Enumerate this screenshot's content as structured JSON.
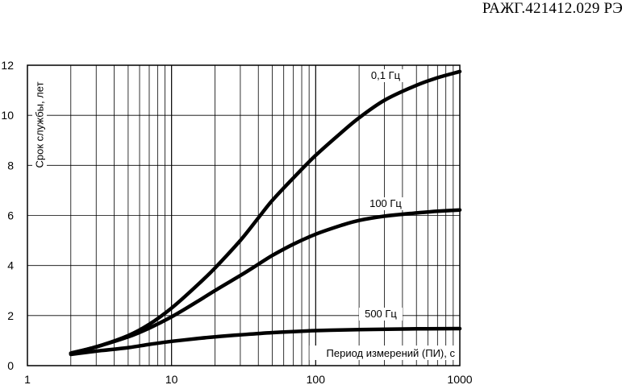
{
  "document": {
    "code": "РАЖГ.421412.029 РЭ"
  },
  "chart_data": {
    "type": "line",
    "title": "",
    "xlabel": "Период измерений (ПИ), с",
    "ylabel": "Срок службы, лет",
    "xscale": "log",
    "xlim": [
      1,
      1000
    ],
    "ylim": [
      0,
      12
    ],
    "xticks": [
      1,
      10,
      100,
      1000
    ],
    "xtick_labels": [
      "1",
      "10",
      "100",
      "1000"
    ],
    "yticks": [
      0,
      2,
      4,
      6,
      8,
      10,
      12
    ],
    "ytick_labels": [
      "0",
      "2",
      "4",
      "6",
      "8",
      "10",
      "12"
    ],
    "grid": true,
    "legend": "none",
    "line_color": "#000000",
    "series": [
      {
        "name": "0,1 Гц",
        "x": [
          2,
          3,
          5,
          7,
          10,
          15,
          20,
          30,
          40,
          50,
          70,
          100,
          150,
          200,
          300,
          500,
          700,
          1000
        ],
        "y": [
          0.5,
          0.75,
          1.2,
          1.65,
          2.3,
          3.2,
          3.9,
          5.0,
          5.9,
          6.6,
          7.5,
          8.4,
          9.3,
          9.9,
          10.6,
          11.2,
          11.5,
          11.75
        ]
      },
      {
        "name": "100 Гц",
        "x": [
          2,
          3,
          5,
          7,
          10,
          15,
          20,
          30,
          40,
          50,
          70,
          100,
          150,
          200,
          300,
          500,
          700,
          1000
        ],
        "y": [
          0.5,
          0.75,
          1.15,
          1.5,
          1.95,
          2.55,
          3.0,
          3.6,
          4.05,
          4.4,
          4.85,
          5.25,
          5.6,
          5.8,
          5.97,
          6.1,
          6.17,
          6.22
        ]
      },
      {
        "name": "500 Гц",
        "x": [
          2,
          3,
          5,
          7,
          10,
          15,
          20,
          30,
          50,
          100,
          200,
          500,
          1000
        ],
        "y": [
          0.45,
          0.58,
          0.72,
          0.85,
          0.97,
          1.08,
          1.15,
          1.23,
          1.32,
          1.4,
          1.44,
          1.47,
          1.48
        ]
      }
    ]
  }
}
